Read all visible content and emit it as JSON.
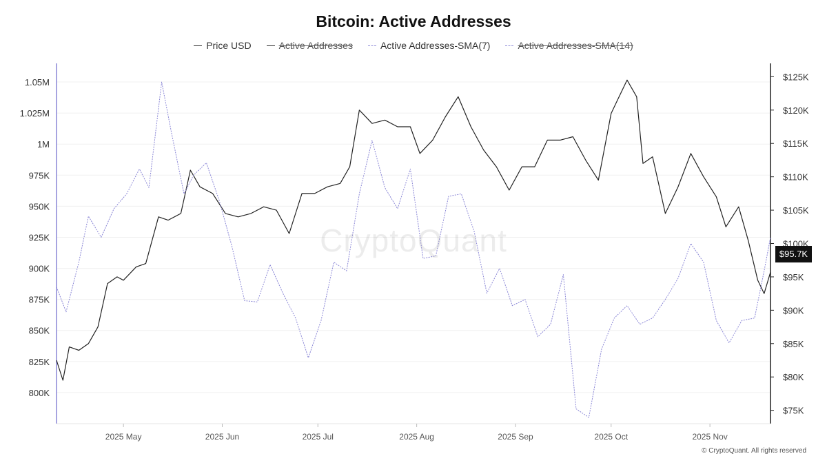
{
  "title": "Bitcoin: Active Addresses",
  "legend": [
    {
      "label": "Price USD",
      "enabled": true,
      "style": "solid",
      "color": "#222222"
    },
    {
      "label": "Active Addresses",
      "enabled": false,
      "style": "solid",
      "color": "#222222"
    },
    {
      "label": "Active Addresses-SMA(7)",
      "enabled": true,
      "style": "dashed",
      "color": "#8a86d6"
    },
    {
      "label": "Active Addresses-SMA(14)",
      "enabled": false,
      "style": "dashed",
      "color": "#8a86d6"
    }
  ],
  "watermark": "CryptoQuant",
  "copyright": "© CryptoQuant. All rights reserved",
  "current_price_label": "$95.7K",
  "chart_data": {
    "type": "line",
    "title": "Bitcoin: Active Addresses",
    "x_ticks": [
      "2025 May",
      "2025 Jun",
      "2025 Jul",
      "2025 Aug",
      "2025 Sep",
      "2025 Oct",
      "2025 Nov"
    ],
    "y_left_ticks": [
      "800K",
      "825K",
      "850K",
      "875K",
      "900K",
      "925K",
      "950K",
      "975K",
      "1M",
      "1.025M",
      "1.05M"
    ],
    "y_left_tick_values": [
      800000,
      825000,
      850000,
      875000,
      900000,
      925000,
      950000,
      975000,
      1000000,
      1025000,
      1050000
    ],
    "y_right_ticks": [
      "$75K",
      "$80K",
      "$85K",
      "$90K",
      "$95K",
      "$100K",
      "$105K",
      "$110K",
      "$115K",
      "$120K",
      "$125K"
    ],
    "y_right_tick_values": [
      75000,
      80000,
      85000,
      90000,
      95000,
      100000,
      105000,
      110000,
      115000,
      120000,
      125000
    ],
    "x_range": [
      "2025-04-10",
      "2025-11-20"
    ],
    "y_left_range": [
      775000,
      1065000
    ],
    "y_right_range": [
      73000,
      127000
    ],
    "grid": true,
    "legend_position": "top-center",
    "series": [
      {
        "name": "Price USD",
        "axis": "right",
        "color": "#222222",
        "dates": [
          "2025-04-10",
          "2025-04-12",
          "2025-04-14",
          "2025-04-17",
          "2025-04-20",
          "2025-04-23",
          "2025-04-26",
          "2025-04-29",
          "2025-05-01",
          "2025-05-05",
          "2025-05-08",
          "2025-05-12",
          "2025-05-15",
          "2025-05-19",
          "2025-05-22",
          "2025-05-25",
          "2025-05-29",
          "2025-06-02",
          "2025-06-06",
          "2025-06-10",
          "2025-06-14",
          "2025-06-18",
          "2025-06-22",
          "2025-06-26",
          "2025-06-30",
          "2025-07-04",
          "2025-07-08",
          "2025-07-11",
          "2025-07-14",
          "2025-07-18",
          "2025-07-22",
          "2025-07-26",
          "2025-07-30",
          "2025-08-02",
          "2025-08-06",
          "2025-08-10",
          "2025-08-14",
          "2025-08-18",
          "2025-08-22",
          "2025-08-26",
          "2025-08-30",
          "2025-09-03",
          "2025-09-07",
          "2025-09-11",
          "2025-09-15",
          "2025-09-19",
          "2025-09-23",
          "2025-09-27",
          "2025-10-01",
          "2025-10-03",
          "2025-10-06",
          "2025-10-09",
          "2025-10-11",
          "2025-10-14",
          "2025-10-18",
          "2025-10-22",
          "2025-10-26",
          "2025-10-30",
          "2025-11-03",
          "2025-11-06",
          "2025-11-10",
          "2025-11-13",
          "2025-11-16",
          "2025-11-18",
          "2025-11-20"
        ],
        "values": [
          82500,
          79500,
          84500,
          84000,
          85000,
          87500,
          94000,
          95000,
          94500,
          96500,
          97000,
          104000,
          103500,
          104500,
          111000,
          108500,
          107500,
          104500,
          104000,
          104500,
          105500,
          105000,
          101500,
          107500,
          107500,
          108500,
          109000,
          111500,
          120000,
          118000,
          118500,
          117500,
          117500,
          113500,
          115500,
          119000,
          122000,
          117500,
          114000,
          111500,
          108000,
          111500,
          111500,
          115500,
          115500,
          116000,
          112500,
          109500,
          119500,
          121500,
          124500,
          122000,
          112000,
          113000,
          104500,
          108500,
          113500,
          110000,
          107000,
          102500,
          105500,
          100500,
          94500,
          92500,
          95700
        ]
      },
      {
        "name": "Active Addresses-SMA(7)",
        "axis": "left",
        "color": "#8a86d6",
        "dates": [
          "2025-04-10",
          "2025-04-13",
          "2025-04-17",
          "2025-04-20",
          "2025-04-24",
          "2025-04-28",
          "2025-05-02",
          "2025-05-06",
          "2025-05-09",
          "2025-05-13",
          "2025-05-16",
          "2025-05-20",
          "2025-05-23",
          "2025-05-27",
          "2025-05-31",
          "2025-06-04",
          "2025-06-08",
          "2025-06-12",
          "2025-06-16",
          "2025-06-20",
          "2025-06-24",
          "2025-06-28",
          "2025-07-02",
          "2025-07-06",
          "2025-07-10",
          "2025-07-14",
          "2025-07-18",
          "2025-07-22",
          "2025-07-26",
          "2025-07-30",
          "2025-08-03",
          "2025-08-07",
          "2025-08-11",
          "2025-08-15",
          "2025-08-19",
          "2025-08-23",
          "2025-08-27",
          "2025-08-31",
          "2025-09-04",
          "2025-09-08",
          "2025-09-12",
          "2025-09-16",
          "2025-09-20",
          "2025-09-24",
          "2025-09-28",
          "2025-10-02",
          "2025-10-06",
          "2025-10-10",
          "2025-10-14",
          "2025-10-18",
          "2025-10-22",
          "2025-10-26",
          "2025-10-30",
          "2025-11-03",
          "2025-11-07",
          "2025-11-11",
          "2025-11-15",
          "2025-11-18",
          "2025-11-20"
        ],
        "values": [
          885000,
          865000,
          905000,
          942000,
          925000,
          948000,
          960000,
          980000,
          965000,
          1050000,
          1010000,
          960000,
          975000,
          985000,
          955000,
          918000,
          874000,
          873000,
          903000,
          880000,
          860000,
          828000,
          858000,
          905000,
          898000,
          960000,
          1003000,
          965000,
          948000,
          980000,
          908000,
          910000,
          958000,
          960000,
          930000,
          880000,
          900000,
          870000,
          875000,
          845000,
          855000,
          895000,
          787000,
          780000,
          835000,
          860000,
          870000,
          855000,
          860000,
          875000,
          892000,
          920000,
          905000,
          858000,
          840000,
          858000,
          860000,
          898000,
          925000
        ]
      }
    ]
  }
}
